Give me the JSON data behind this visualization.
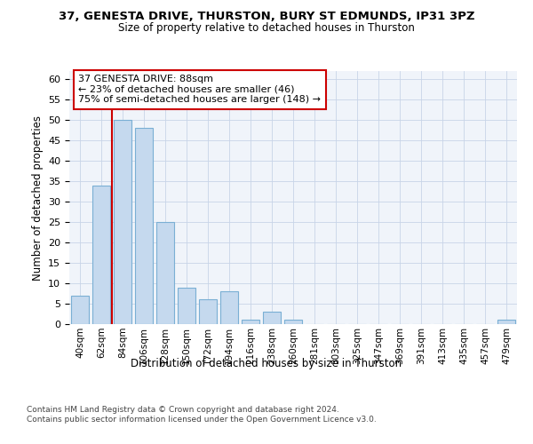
{
  "title_line1": "37, GENESTA DRIVE, THURSTON, BURY ST EDMUNDS, IP31 3PZ",
  "title_line2": "Size of property relative to detached houses in Thurston",
  "xlabel": "Distribution of detached houses by size in Thurston",
  "ylabel": "Number of detached properties",
  "categories": [
    "40sqm",
    "62sqm",
    "84sqm",
    "106sqm",
    "128sqm",
    "150sqm",
    "172sqm",
    "194sqm",
    "216sqm",
    "238sqm",
    "260sqm",
    "281sqm",
    "303sqm",
    "325sqm",
    "347sqm",
    "369sqm",
    "391sqm",
    "413sqm",
    "435sqm",
    "457sqm",
    "479sqm"
  ],
  "values": [
    7,
    34,
    50,
    48,
    25,
    9,
    6,
    8,
    1,
    3,
    1,
    0,
    0,
    0,
    0,
    0,
    0,
    0,
    0,
    0,
    1
  ],
  "bar_color": "#c5d9ee",
  "bar_edge_color": "#7aafd4",
  "vline_color": "#cc0000",
  "annotation_text": "37 GENESTA DRIVE: 88sqm\n← 23% of detached houses are smaller (46)\n75% of semi-detached houses are larger (148) →",
  "annotation_box_color": "#ffffff",
  "annotation_box_edge": "#cc0000",
  "ylim": [
    0,
    62
  ],
  "yticks": [
    0,
    5,
    10,
    15,
    20,
    25,
    30,
    35,
    40,
    45,
    50,
    55,
    60
  ],
  "footer_text": "Contains HM Land Registry data © Crown copyright and database right 2024.\nContains public sector information licensed under the Open Government Licence v3.0.",
  "bg_color": "#f0f4fa",
  "grid_color": "#c8d4e8"
}
